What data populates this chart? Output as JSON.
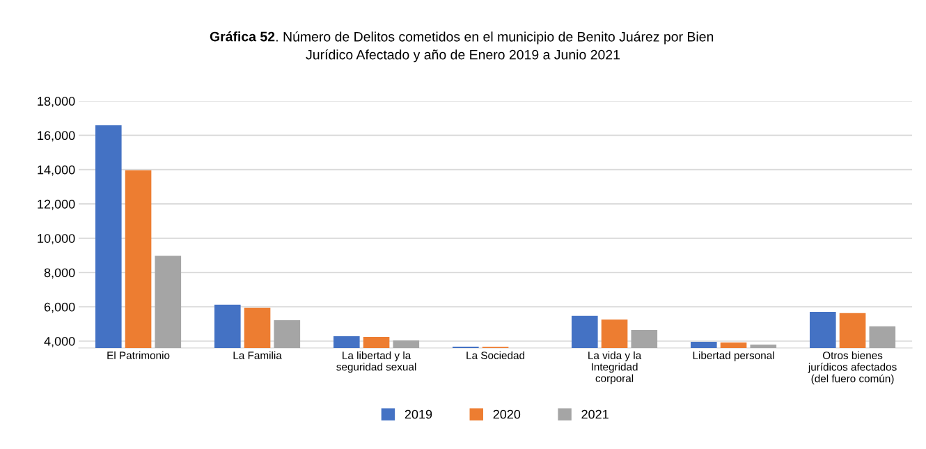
{
  "chart_data": {
    "type": "bar",
    "title": "Gráfica 52. Número de Delitos cometidos en el municipio de Benito Juárez por Bien\nJurídico Afectado y año de Enero 2019 a Junio 2021",
    "categories": [
      "El Patrimonio",
      "La Familia",
      "La libertad y la\nseguridad sexual",
      "La Sociedad",
      "La vida y la\nIntegridad\ncorporal",
      "Libertad personal",
      "Otros bienes\njurídicos afectados\n(del fuero común)"
    ],
    "series": [
      {
        "name": "2019",
        "color": "#4472c4",
        "values": [
          16580,
          6120,
          4290,
          3680,
          5470,
          3960,
          5710
        ]
      },
      {
        "name": "2020",
        "color": "#ed7d31",
        "values": [
          13970,
          5950,
          4240,
          3670,
          5260,
          3920,
          5630
        ]
      },
      {
        "name": "2021",
        "color": "#a5a5a5",
        "values": [
          8970,
          5220,
          4040,
          null,
          4650,
          3800,
          4860
        ]
      }
    ],
    "ylim": [
      3600,
      18000
    ],
    "yticks": [
      {
        "value": 4000,
        "label": "4,000"
      },
      {
        "value": 6000,
        "label": "6,000"
      },
      {
        "value": 8000,
        "label": "8,000"
      },
      {
        "value": 10000,
        "label": "10,000"
      },
      {
        "value": 12000,
        "label": "12,000"
      },
      {
        "value": 14000,
        "label": "14,000"
      },
      {
        "value": 16000,
        "label": "16,000"
      },
      {
        "value": 18000,
        "label": "18,000"
      }
    ],
    "grid": "y",
    "legend": "bottom"
  }
}
